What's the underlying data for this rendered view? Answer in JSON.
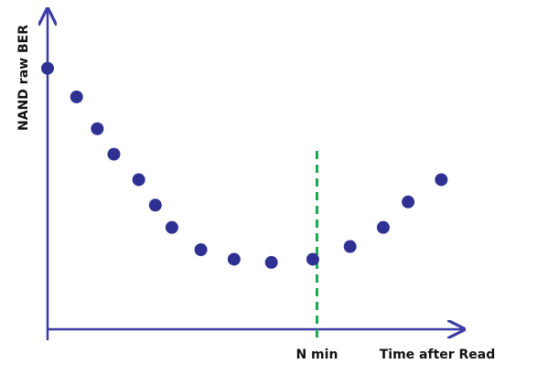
{
  "chart_data": {
    "type": "scatter",
    "x_label": "Time after Read",
    "y_label": "NAND raw BER",
    "x": [
      0,
      7,
      12,
      16,
      22,
      26,
      30,
      37,
      45,
      54,
      64,
      73,
      81,
      87,
      95
    ],
    "values": [
      82,
      73,
      63,
      55,
      47,
      39,
      32,
      25,
      22,
      21,
      22,
      26,
      32,
      40,
      47
    ],
    "color": "#2e3192",
    "axis_color": "#3b3ba6",
    "xlim": [
      0,
      100
    ],
    "ylim": [
      0,
      100
    ],
    "annotations": [
      {
        "text": "N min",
        "x": 65,
        "color": "#1aa84f"
      }
    ]
  }
}
